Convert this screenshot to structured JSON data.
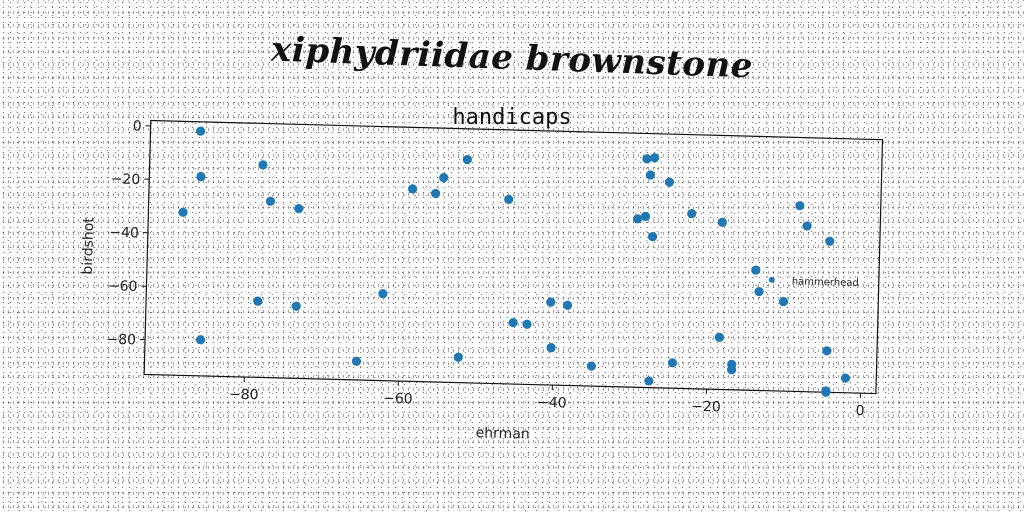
{
  "figure_title": "xiphydriidae brownstone",
  "chart_data": {
    "type": "scatter",
    "title": "handicaps",
    "xlabel": "ehrman",
    "ylabel": "birdshot",
    "xlim": [
      -93,
      2
    ],
    "ylim": [
      -93,
      2
    ],
    "xticks": [
      -80,
      -60,
      -40,
      -20,
      0
    ],
    "yticks": [
      0,
      -20,
      -40,
      -60,
      -80
    ],
    "grid": false,
    "legend": "right",
    "series": [
      {
        "name": "hammerhead",
        "color": "#1f77b4",
        "x": [
          -86.5,
          -86.3,
          -88.5,
          -85.8,
          -78.3,
          -77.2,
          -73.5,
          -78.5,
          -73.5,
          -62.3,
          -65.5,
          -58.8,
          -55.8,
          -54.8,
          -51.8,
          -46.3,
          -52.3,
          -45.3,
          -43.5,
          -40.5,
          -38.3,
          -40.3,
          -35.0,
          -28.5,
          -28.0,
          -28.5,
          -29.5,
          -27.5,
          -27.5,
          -25.5,
          -22.5,
          -18.5,
          -24.5,
          -18.5,
          -16.8,
          -16.8,
          -27.5,
          -14.0,
          -13.5,
          -10.3,
          -8.5,
          -7.5,
          -4.5,
          -4.5,
          -4.5,
          -4.5,
          -2.0
        ],
        "y": [
          -1.5,
          -18.5,
          -32.0,
          -79.5,
          -13.5,
          -27.0,
          -29.5,
          -64.5,
          -66.0,
          -60.5,
          -86.0,
          -21.0,
          -22.5,
          -16.5,
          -9.5,
          -24.0,
          -83.5,
          -70.0,
          -70.5,
          -62.0,
          -63.0,
          -79.0,
          -85.5,
          -7.5,
          -13.5,
          -29.0,
          -30.0,
          -36.5,
          -7.0,
          -16.0,
          -27.5,
          -30.5,
          -83.5,
          -73.5,
          -83.5,
          -85.5,
          -90.5,
          -48.0,
          -56.0,
          -59.5,
          -23.5,
          -31.0,
          -36.5,
          -77.5,
          -92.5,
          -93.0,
          -87.5
        ]
      }
    ]
  }
}
